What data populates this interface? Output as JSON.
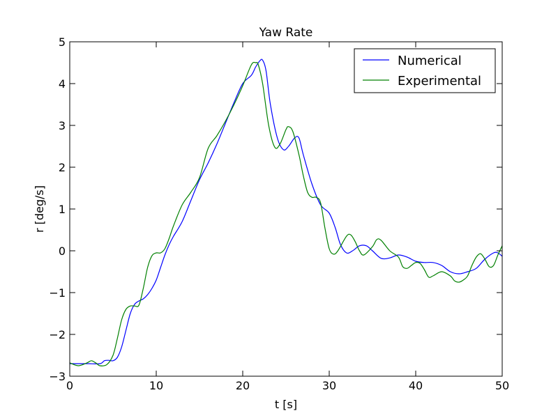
{
  "chart_data": {
    "type": "line",
    "title": "Yaw Rate",
    "xlabel": "t [s]",
    "ylabel": "r [deg/s]",
    "xlim": [
      0,
      50
    ],
    "ylim": [
      -3,
      5
    ],
    "x_ticks": [
      0,
      10,
      20,
      30,
      40,
      50
    ],
    "x_tick_labels": [
      "0",
      "10",
      "20",
      "30",
      "40",
      "50"
    ],
    "y_ticks": [
      -3,
      -2,
      -1,
      0,
      1,
      2,
      3,
      4,
      5
    ],
    "y_tick_labels": [
      "−3",
      "−2",
      "−1",
      "0",
      "1",
      "2",
      "3",
      "4",
      "5"
    ],
    "grid": false,
    "legend_position": "top-right",
    "series": [
      {
        "name": "Numerical",
        "color": "#0000ff",
        "points": [
          [
            0,
            -2.7
          ],
          [
            2,
            -2.7
          ],
          [
            3.5,
            -2.7
          ],
          [
            4,
            -2.63
          ],
          [
            4.5,
            -2.62
          ],
          [
            5,
            -2.63
          ],
          [
            5.5,
            -2.55
          ],
          [
            6,
            -2.3
          ],
          [
            6.5,
            -1.9
          ],
          [
            7,
            -1.5
          ],
          [
            7.5,
            -1.28
          ],
          [
            8,
            -1.2
          ],
          [
            8.5,
            -1.15
          ],
          [
            9,
            -1.05
          ],
          [
            9.5,
            -0.9
          ],
          [
            10,
            -0.7
          ],
          [
            10.5,
            -0.4
          ],
          [
            11,
            -0.1
          ],
          [
            11.5,
            0.15
          ],
          [
            12,
            0.35
          ],
          [
            13,
            0.7
          ],
          [
            14,
            1.2
          ],
          [
            15,
            1.7
          ],
          [
            16,
            2.1
          ],
          [
            17,
            2.55
          ],
          [
            18,
            3.05
          ],
          [
            19,
            3.55
          ],
          [
            20,
            4.0
          ],
          [
            21,
            4.2
          ],
          [
            21.5,
            4.4
          ],
          [
            22,
            4.55
          ],
          [
            22.3,
            4.56
          ],
          [
            22.7,
            4.3
          ],
          [
            23.2,
            3.5
          ],
          [
            24,
            2.7
          ],
          [
            24.7,
            2.42
          ],
          [
            25.3,
            2.5
          ],
          [
            26,
            2.7
          ],
          [
            26.5,
            2.7
          ],
          [
            27,
            2.3
          ],
          [
            28,
            1.6
          ],
          [
            29,
            1.1
          ],
          [
            30,
            0.9
          ],
          [
            30.7,
            0.55
          ],
          [
            31.3,
            0.15
          ],
          [
            32,
            -0.05
          ],
          [
            32.7,
            0.0
          ],
          [
            33.5,
            0.12
          ],
          [
            34.3,
            0.12
          ],
          [
            35,
            0.0
          ],
          [
            36,
            -0.18
          ],
          [
            37,
            -0.17
          ],
          [
            38,
            -0.1
          ],
          [
            39,
            -0.15
          ],
          [
            40,
            -0.25
          ],
          [
            41,
            -0.28
          ],
          [
            42,
            -0.28
          ],
          [
            43,
            -0.35
          ],
          [
            44,
            -0.5
          ],
          [
            45,
            -0.55
          ],
          [
            46,
            -0.5
          ],
          [
            47,
            -0.42
          ],
          [
            48,
            -0.2
          ],
          [
            49,
            -0.05
          ],
          [
            49.5,
            -0.05
          ],
          [
            50,
            -0.13
          ]
        ]
      },
      {
        "name": "Experimental",
        "color": "#008000",
        "points": [
          [
            0,
            -2.68
          ],
          [
            1,
            -2.75
          ],
          [
            2,
            -2.68
          ],
          [
            2.5,
            -2.63
          ],
          [
            3,
            -2.68
          ],
          [
            3.5,
            -2.75
          ],
          [
            4.3,
            -2.72
          ],
          [
            5,
            -2.5
          ],
          [
            5.5,
            -2.1
          ],
          [
            6,
            -1.65
          ],
          [
            6.5,
            -1.4
          ],
          [
            7,
            -1.32
          ],
          [
            7.5,
            -1.32
          ],
          [
            8,
            -1.3
          ],
          [
            8.5,
            -0.9
          ],
          [
            9,
            -0.4
          ],
          [
            9.5,
            -0.12
          ],
          [
            10,
            -0.05
          ],
          [
            10.5,
            -0.05
          ],
          [
            11,
            0.05
          ],
          [
            11.5,
            0.3
          ],
          [
            12,
            0.6
          ],
          [
            13,
            1.1
          ],
          [
            14,
            1.4
          ],
          [
            15,
            1.75
          ],
          [
            16,
            2.45
          ],
          [
            17,
            2.75
          ],
          [
            18,
            3.1
          ],
          [
            19,
            3.5
          ],
          [
            20,
            3.95
          ],
          [
            21,
            4.45
          ],
          [
            21.5,
            4.5
          ],
          [
            21.8,
            4.45
          ],
          [
            22.3,
            4.0
          ],
          [
            23,
            3.0
          ],
          [
            23.7,
            2.48
          ],
          [
            24.3,
            2.55
          ],
          [
            25,
            2.9
          ],
          [
            25.3,
            2.97
          ],
          [
            25.8,
            2.85
          ],
          [
            26.5,
            2.3
          ],
          [
            27,
            1.8
          ],
          [
            27.5,
            1.4
          ],
          [
            28,
            1.28
          ],
          [
            28.5,
            1.28
          ],
          [
            29,
            1.15
          ],
          [
            29.5,
            0.55
          ],
          [
            30,
            0.05
          ],
          [
            30.5,
            -0.08
          ],
          [
            31,
            0.0
          ],
          [
            32,
            0.35
          ],
          [
            32.5,
            0.38
          ],
          [
            33,
            0.22
          ],
          [
            33.5,
            0.0
          ],
          [
            34,
            -0.1
          ],
          [
            35,
            0.1
          ],
          [
            35.5,
            0.27
          ],
          [
            36,
            0.25
          ],
          [
            37,
            0.0
          ],
          [
            38,
            -0.15
          ],
          [
            38.5,
            -0.38
          ],
          [
            39,
            -0.42
          ],
          [
            39.5,
            -0.35
          ],
          [
            40,
            -0.28
          ],
          [
            40.5,
            -0.3
          ],
          [
            41,
            -0.45
          ],
          [
            41.5,
            -0.63
          ],
          [
            42,
            -0.6
          ],
          [
            43,
            -0.5
          ],
          [
            44,
            -0.6
          ],
          [
            44.5,
            -0.72
          ],
          [
            45,
            -0.75
          ],
          [
            45.5,
            -0.7
          ],
          [
            46,
            -0.6
          ],
          [
            46.5,
            -0.35
          ],
          [
            47,
            -0.15
          ],
          [
            47.5,
            -0.07
          ],
          [
            48,
            -0.2
          ],
          [
            48.5,
            -0.38
          ],
          [
            49,
            -0.35
          ],
          [
            49.5,
            -0.1
          ],
          [
            50,
            0.12
          ]
        ]
      }
    ]
  }
}
